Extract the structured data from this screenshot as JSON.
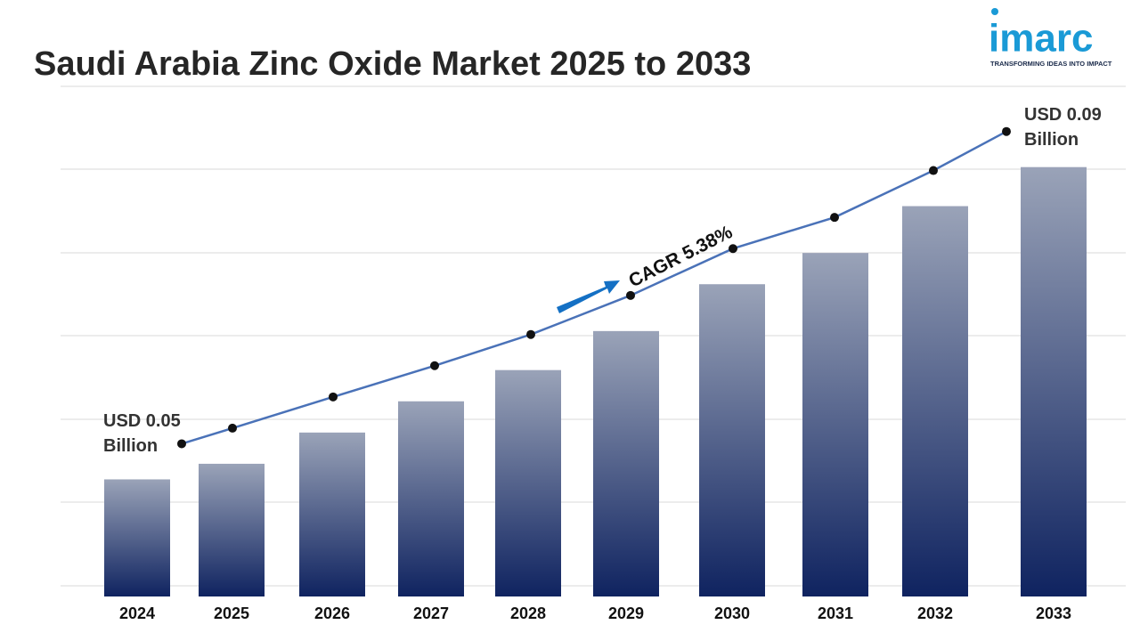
{
  "chart_data": {
    "type": "bar_line",
    "title": "Saudi Arabia Zinc Oxide Market 2025 to 2033",
    "categories": [
      "2024",
      "2025",
      "2026",
      "2027",
      "2028",
      "2029",
      "2030",
      "2031",
      "2032",
      "2033"
    ],
    "values": [
      0.05,
      0.052,
      0.056,
      0.06,
      0.064,
      0.069,
      0.075,
      0.079,
      0.085,
      0.09
    ],
    "value_labels": [
      "USD 0.05 Billion",
      null,
      null,
      null,
      null,
      null,
      null,
      null,
      null,
      "USD 0.09 Billion"
    ],
    "color": "#0f2360",
    "line_color": "#4a72b8",
    "marker_color": "#111111",
    "ylim": [
      0.035,
      0.1
    ],
    "grid": true,
    "annotation": "CAGR 5.38%",
    "logo": {
      "name": "imarc",
      "tagline": "TRANSFORMING IDEAS INTO IMPACT"
    }
  }
}
